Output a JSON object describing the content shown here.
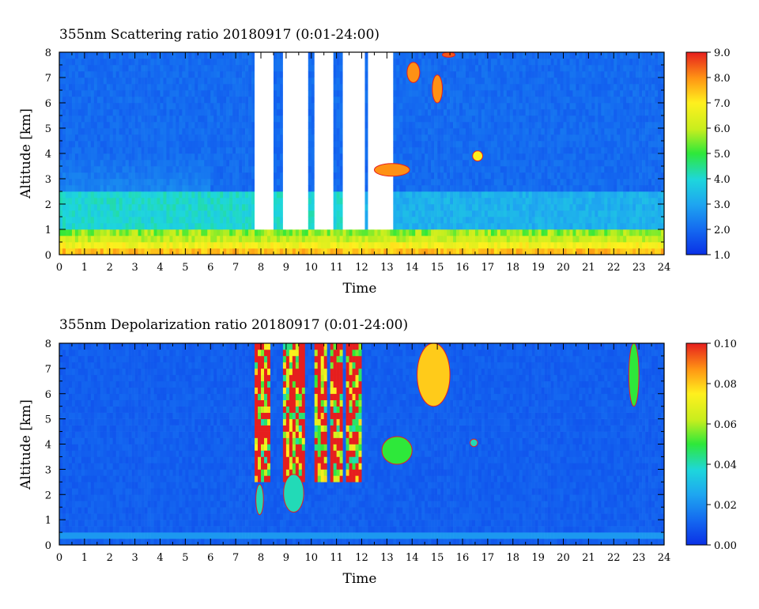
{
  "panels": [
    {
      "title": "355nm Scattering ratio  20180917 (0:01-24:00)",
      "colorbar_labels": [
        "9.0",
        "8.0",
        "7.0",
        "6.0",
        "5.0",
        "4.0",
        "3.0",
        "2.0",
        "1.0"
      ]
    },
    {
      "title": "355nm Depolarization ratio  20180917 (0:01-24:00)",
      "colorbar_labels": [
        "0.10",
        "0.08",
        "0.06",
        "0.04",
        "0.02",
        "0.00"
      ]
    }
  ],
  "chart_data": [
    {
      "type": "heatmap",
      "title": "355nm Scattering ratio  20180917 (0:01-24:00)",
      "xlabel": "Time",
      "ylabel": "Altitude [km]",
      "xlim": [
        0,
        24
      ],
      "ylim": [
        0,
        8
      ],
      "x_ticks": [
        "0",
        "1",
        "2",
        "3",
        "4",
        "5",
        "6",
        "7",
        "8",
        "9",
        "10",
        "11",
        "12",
        "13",
        "14",
        "15",
        "16",
        "17",
        "18",
        "19",
        "20",
        "21",
        "22",
        "23",
        "24"
      ],
      "y_ticks": [
        "0",
        "1",
        "2",
        "3",
        "4",
        "5",
        "6",
        "7",
        "8"
      ],
      "colorbar_range": [
        1.0,
        9.0
      ],
      "features": {
        "boundary_layer_top_km": 0.7,
        "boundary_layer_max_ratio": 7.5,
        "aerosol_layer_km": [
          1.0,
          2.5
        ],
        "aerosol_layer_ratio": 4.0,
        "free_troposphere_ratio": 2.0,
        "saturated_periods_h": [
          [
            7.8,
            8.5
          ],
          [
            8.9,
            9.9
          ],
          [
            10.1,
            10.9
          ],
          [
            11.2,
            12.1
          ],
          [
            12.3,
            13.3
          ]
        ],
        "cloud_patches": [
          {
            "t": [
              12.5,
              13.9
            ],
            "z": [
              3.1,
              3.6
            ],
            "value": 8.0
          },
          {
            "t": [
              13.8,
              14.3
            ],
            "z": [
              6.8,
              7.6
            ],
            "value": 8.0
          },
          {
            "t": [
              14.8,
              15.2
            ],
            "z": [
              6.0,
              7.1
            ],
            "value": 8.0
          },
          {
            "t": [
              15.2,
              15.7
            ],
            "z": [
              7.8,
              8.0
            ],
            "value": 8.5
          },
          {
            "t": [
              16.4,
              16.8
            ],
            "z": [
              3.7,
              4.1
            ],
            "value": 7.0
          }
        ]
      }
    },
    {
      "type": "heatmap",
      "title": "355nm Depolarization ratio  20180917 (0:01-24:00)",
      "xlabel": "Time",
      "ylabel": "Altitude [km]",
      "xlim": [
        0,
        24
      ],
      "ylim": [
        0,
        8
      ],
      "x_ticks": [
        "0",
        "1",
        "2",
        "3",
        "4",
        "5",
        "6",
        "7",
        "8",
        "9",
        "10",
        "11",
        "12",
        "13",
        "14",
        "15",
        "16",
        "17",
        "18",
        "19",
        "20",
        "21",
        "22",
        "23",
        "24"
      ],
      "y_ticks": [
        "0",
        "1",
        "2",
        "3",
        "4",
        "5",
        "6",
        "7",
        "8"
      ],
      "colorbar_range": [
        0.0,
        0.1
      ],
      "features": {
        "background_value": 0.01,
        "surface_band_km": [
          0.35,
          0.55
        ],
        "high_depol_columns_h": [
          [
            7.8,
            8.4
          ],
          [
            8.9,
            9.8
          ],
          [
            10.1,
            10.6
          ],
          [
            10.8,
            11.2
          ],
          [
            11.4,
            12.0
          ]
        ],
        "high_depol_value": 0.1,
        "low_cloud_patches": [
          {
            "t": [
              7.8,
              8.1
            ],
            "z": [
              1.2,
              2.4
            ],
            "value": 0.04
          },
          {
            "t": [
              8.9,
              9.7
            ],
            "z": [
              1.3,
              2.8
            ],
            "value": 0.04
          }
        ],
        "upper_patches": [
          {
            "t": [
              12.8,
              14.0
            ],
            "z": [
              3.2,
              4.3
            ],
            "value": 0.05
          },
          {
            "t": [
              14.2,
              15.5
            ],
            "z": [
              5.5,
              8.0
            ],
            "value": 0.08
          },
          {
            "t": [
              16.3,
              16.6
            ],
            "z": [
              3.9,
              4.2
            ],
            "value": 0.04
          },
          {
            "t": [
              22.6,
              23.0
            ],
            "z": [
              5.5,
              8.0
            ],
            "value": 0.05
          }
        ]
      }
    }
  ]
}
